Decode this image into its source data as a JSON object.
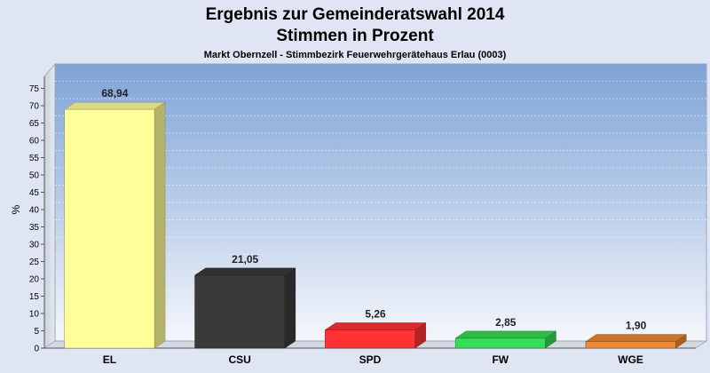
{
  "chart_data": {
    "type": "bar",
    "title": "Ergebnis zur Gemeinderatswahl 2014",
    "title2": "Stimmen in Prozent",
    "subtitle": "Markt Obernzell - Stimmbezirk Feuerwehrgerätehaus Erlau (0003)",
    "xlabel": "",
    "ylabel": "%",
    "ylim": [
      0,
      80
    ],
    "yticks": [
      0,
      5,
      10,
      15,
      20,
      25,
      30,
      35,
      40,
      45,
      50,
      55,
      60,
      65,
      70,
      75
    ],
    "categories": [
      "EL",
      "CSU",
      "SPD",
      "FW",
      "WGE"
    ],
    "values": [
      68.94,
      21.05,
      5.26,
      2.85,
      1.9
    ],
    "value_labels": [
      "68,94",
      "21,05",
      "5,26",
      "2,85",
      "1,90"
    ],
    "colors": [
      "#ffff99",
      "#3a3a3a",
      "#ff3333",
      "#33dd55",
      "#ee8833"
    ],
    "grid": true,
    "legend": "none"
  }
}
